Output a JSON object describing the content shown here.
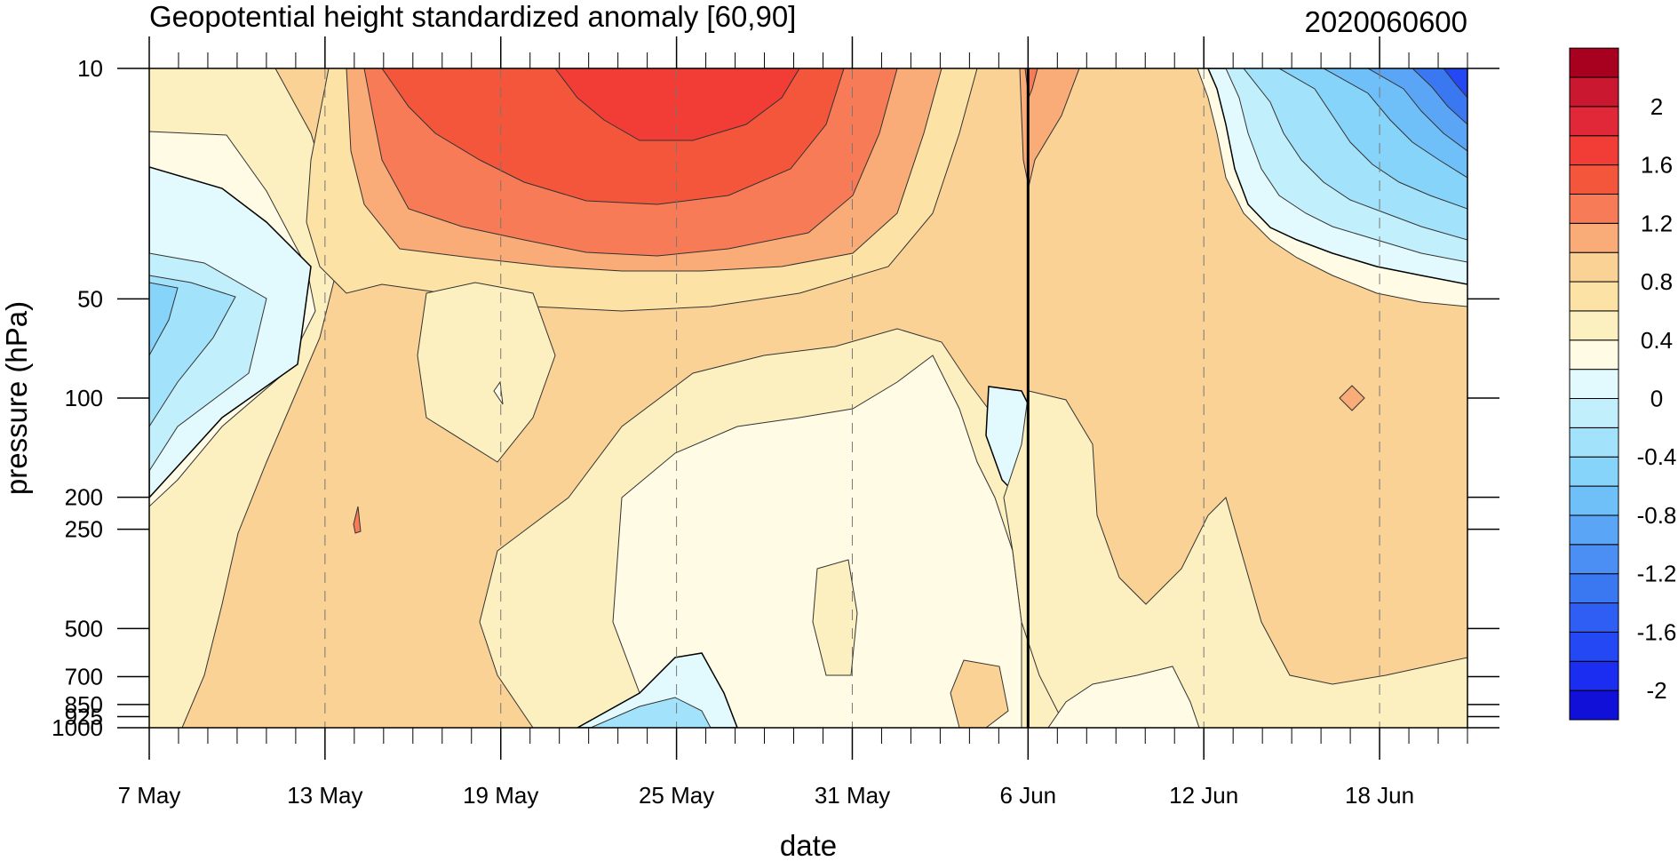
{
  "chart_data": {
    "type": "heatmap",
    "title": "Geopotential height standardized anomaly [60,90]",
    "date_label": "2020060600",
    "xlabel": "date",
    "ylabel": "pressure (hPa)",
    "x_day_range": [
      0,
      45
    ],
    "y_log_scale": true,
    "y_range_hpa": [
      10,
      1000
    ],
    "x_ticks": [
      {
        "label": "7 May",
        "day": 0
      },
      {
        "label": "13 May",
        "day": 6
      },
      {
        "label": "19 May",
        "day": 12
      },
      {
        "label": "25 May",
        "day": 18
      },
      {
        "label": "31 May",
        "day": 24
      },
      {
        "label": "6 Jun",
        "day": 30
      },
      {
        "label": "12 Jun",
        "day": 36
      },
      {
        "label": "18 Jun",
        "day": 42
      }
    ],
    "marker_day": 30,
    "y_ticks": [
      {
        "label": "10",
        "p": 10
      },
      {
        "label": "50",
        "p": 50
      },
      {
        "label": "100",
        "p": 100
      },
      {
        "label": "200",
        "p": 200
      },
      {
        "label": "250",
        "p": 250
      },
      {
        "label": "500",
        "p": 500
      },
      {
        "label": "700",
        "p": 700
      },
      {
        "label": "850",
        "p": 850
      },
      {
        "label": "925",
        "p": 925
      },
      {
        "label": "1000",
        "p": 1000
      }
    ],
    "colorbar": {
      "levels": [
        -2.2,
        -2.0,
        -1.8,
        -1.6,
        -1.4,
        -1.2,
        -1.0,
        -0.8,
        -0.6,
        -0.4,
        -0.2,
        0.0,
        0.2,
        0.4,
        0.6,
        0.8,
        1.0,
        1.2,
        1.4,
        1.6,
        1.8,
        2.0,
        2.2
      ],
      "colors": [
        "#1010d8",
        "#1a2df0",
        "#2448f4",
        "#2f5ef4",
        "#3a78f2",
        "#4b8ef4",
        "#5aa5f6",
        "#6fc0f8",
        "#86d4fa",
        "#a2e2fb",
        "#c2effc",
        "#e2fafd",
        "#fffbe4",
        "#fdf0c0",
        "#fde2a6",
        "#fbd296",
        "#f9ac78",
        "#f77b56",
        "#f4563c",
        "#f23c36",
        "#e12838",
        "#c91830",
        "#a8001f"
      ],
      "labels": [
        {
          "text": "2",
          "value": 2.0
        },
        {
          "text": "1.6",
          "value": 1.6
        },
        {
          "text": "1.2",
          "value": 1.2
        },
        {
          "text": "0.8",
          "value": 0.8
        },
        {
          "text": "0.4",
          "value": 0.4
        },
        {
          "text": "0",
          "value": 0.0
        },
        {
          "text": "-0.4",
          "value": -0.4
        },
        {
          "text": "-0.8",
          "value": -0.8
        },
        {
          "text": "-1.2",
          "value": -1.2
        },
        {
          "text": "-1.6",
          "value": -1.6
        },
        {
          "text": "-2",
          "value": -2.0
        }
      ]
    }
  }
}
